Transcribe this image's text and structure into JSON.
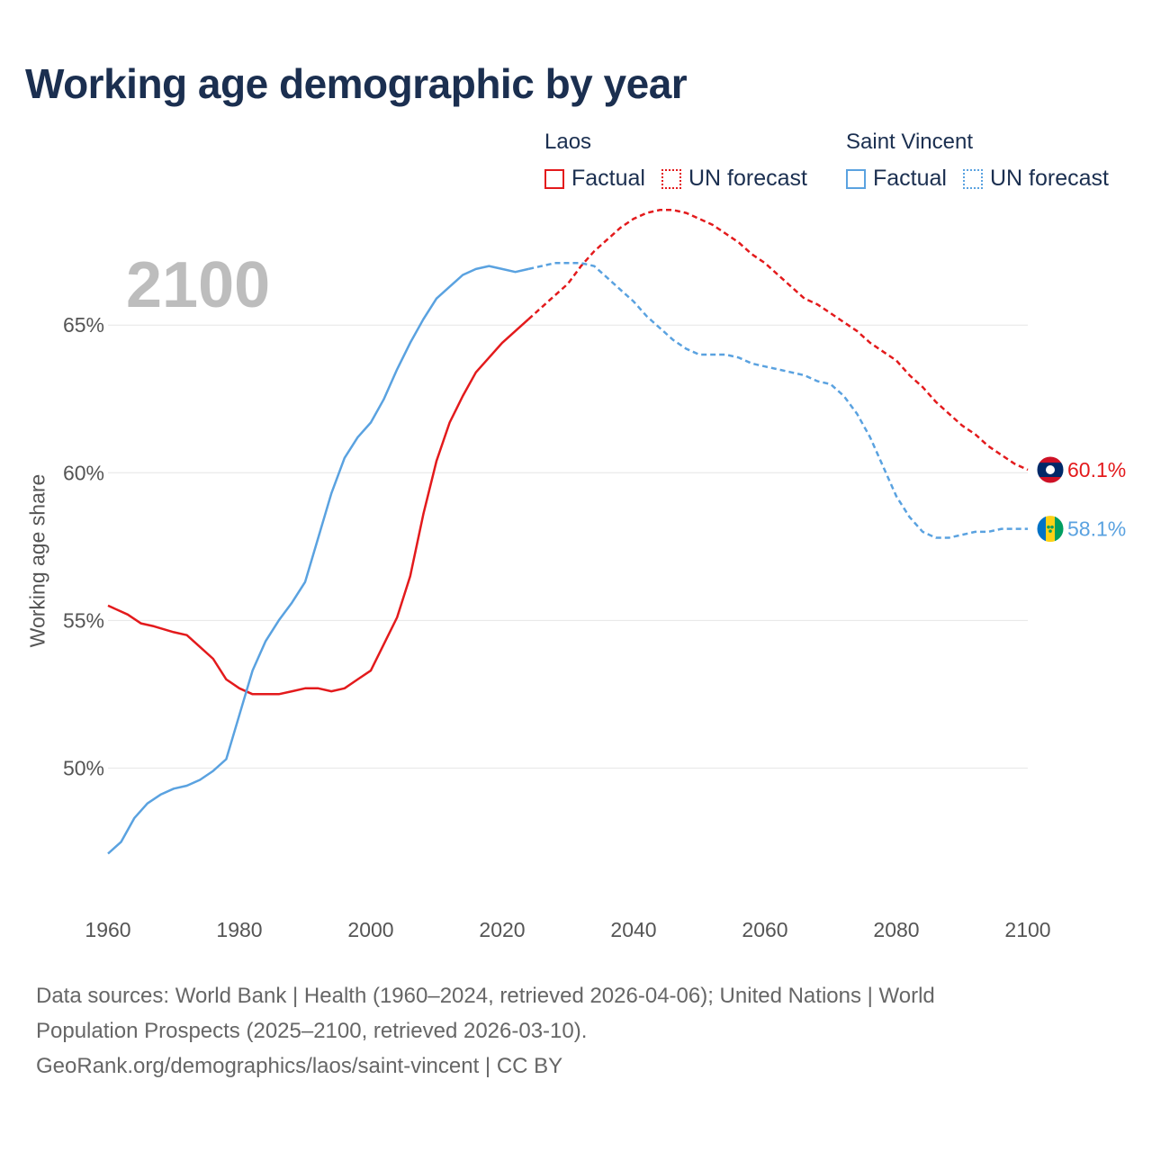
{
  "title": "Working age demographic by year",
  "big_year": "2100",
  "legend": {
    "groups": [
      {
        "country": "Laos",
        "color": "#e31a1c",
        "factual_label": "Factual",
        "forecast_label": "UN forecast"
      },
      {
        "country": "Saint Vincent",
        "color": "#5aa2e0",
        "factual_label": "Factual",
        "forecast_label": "UN forecast"
      }
    ]
  },
  "footer": {
    "line1": "Data sources: World Bank | Health (1960–2024, retrieved 2026-04-06); United Nations | World",
    "line2": "Population Prospects (2025–2100, retrieved 2026-03-10).",
    "line3": "GeoRank.org/demographics/laos/saint-vincent | CC BY"
  },
  "chart_data": {
    "type": "line",
    "title": "Working age demographic by year",
    "xlabel": "",
    "ylabel": "Working age share",
    "xlim": [
      1960,
      2100
    ],
    "ylim": [
      45.5,
      69
    ],
    "x_ticks": [
      1960,
      1980,
      2000,
      2020,
      2040,
      2060,
      2080,
      2100
    ],
    "x_tick_labels": [
      "1960",
      "1980",
      "2000",
      "2020",
      "2040",
      "2060",
      "2080",
      "2100"
    ],
    "y_ticks": [
      50,
      55,
      60,
      65
    ],
    "y_tick_labels": [
      "50%",
      "55%",
      "60%",
      "65%"
    ],
    "grid": true,
    "forecast_start": 2024,
    "series": [
      {
        "name": "Laos",
        "color": "#e31a1c",
        "end_label": "60.1%",
        "flag": "laos-flag",
        "points": [
          [
            1960,
            55.5
          ],
          [
            1963,
            55.2
          ],
          [
            1965,
            54.9
          ],
          [
            1967,
            54.8
          ],
          [
            1970,
            54.6
          ],
          [
            1972,
            54.5
          ],
          [
            1974,
            54.1
          ],
          [
            1976,
            53.7
          ],
          [
            1978,
            53.0
          ],
          [
            1980,
            52.7
          ],
          [
            1982,
            52.5
          ],
          [
            1984,
            52.5
          ],
          [
            1986,
            52.5
          ],
          [
            1988,
            52.6
          ],
          [
            1990,
            52.7
          ],
          [
            1992,
            52.7
          ],
          [
            1994,
            52.6
          ],
          [
            1996,
            52.7
          ],
          [
            1998,
            53.0
          ],
          [
            2000,
            53.3
          ],
          [
            2002,
            54.2
          ],
          [
            2004,
            55.1
          ],
          [
            2006,
            56.5
          ],
          [
            2008,
            58.6
          ],
          [
            2010,
            60.4
          ],
          [
            2012,
            61.7
          ],
          [
            2014,
            62.6
          ],
          [
            2016,
            63.4
          ],
          [
            2018,
            63.9
          ],
          [
            2020,
            64.4
          ],
          [
            2022,
            64.8
          ],
          [
            2024,
            65.2
          ],
          [
            2026,
            65.6
          ],
          [
            2028,
            66.0
          ],
          [
            2030,
            66.4
          ],
          [
            2032,
            67.0
          ],
          [
            2034,
            67.5
          ],
          [
            2036,
            67.9
          ],
          [
            2038,
            68.3
          ],
          [
            2040,
            68.6
          ],
          [
            2042,
            68.8
          ],
          [
            2044,
            68.9
          ],
          [
            2046,
            68.9
          ],
          [
            2048,
            68.8
          ],
          [
            2050,
            68.6
          ],
          [
            2052,
            68.4
          ],
          [
            2054,
            68.1
          ],
          [
            2056,
            67.8
          ],
          [
            2058,
            67.4
          ],
          [
            2060,
            67.1
          ],
          [
            2062,
            66.7
          ],
          [
            2064,
            66.3
          ],
          [
            2066,
            65.9
          ],
          [
            2068,
            65.7
          ],
          [
            2070,
            65.4
          ],
          [
            2072,
            65.1
          ],
          [
            2074,
            64.8
          ],
          [
            2076,
            64.4
          ],
          [
            2078,
            64.1
          ],
          [
            2080,
            63.8
          ],
          [
            2082,
            63.3
          ],
          [
            2084,
            62.9
          ],
          [
            2086,
            62.4
          ],
          [
            2088,
            62.0
          ],
          [
            2090,
            61.6
          ],
          [
            2092,
            61.3
          ],
          [
            2094,
            60.9
          ],
          [
            2096,
            60.6
          ],
          [
            2098,
            60.3
          ],
          [
            2100,
            60.1
          ]
        ]
      },
      {
        "name": "Saint Vincent",
        "color": "#5aa2e0",
        "end_label": "58.1%",
        "flag": "saint-vincent-flag",
        "points": [
          [
            1960,
            47.1
          ],
          [
            1962,
            47.5
          ],
          [
            1964,
            48.3
          ],
          [
            1966,
            48.8
          ],
          [
            1968,
            49.1
          ],
          [
            1970,
            49.3
          ],
          [
            1972,
            49.4
          ],
          [
            1974,
            49.6
          ],
          [
            1976,
            49.9
          ],
          [
            1978,
            50.3
          ],
          [
            1980,
            51.8
          ],
          [
            1982,
            53.3
          ],
          [
            1984,
            54.3
          ],
          [
            1986,
            55.0
          ],
          [
            1988,
            55.6
          ],
          [
            1990,
            56.3
          ],
          [
            1992,
            57.8
          ],
          [
            1994,
            59.3
          ],
          [
            1996,
            60.5
          ],
          [
            1998,
            61.2
          ],
          [
            2000,
            61.7
          ],
          [
            2002,
            62.5
          ],
          [
            2004,
            63.5
          ],
          [
            2006,
            64.4
          ],
          [
            2008,
            65.2
          ],
          [
            2010,
            65.9
          ],
          [
            2012,
            66.3
          ],
          [
            2014,
            66.7
          ],
          [
            2016,
            66.9
          ],
          [
            2018,
            67.0
          ],
          [
            2020,
            66.9
          ],
          [
            2022,
            66.8
          ],
          [
            2024,
            66.9
          ],
          [
            2026,
            67.0
          ],
          [
            2028,
            67.1
          ],
          [
            2030,
            67.1
          ],
          [
            2032,
            67.1
          ],
          [
            2034,
            67.0
          ],
          [
            2036,
            66.6
          ],
          [
            2038,
            66.2
          ],
          [
            2040,
            65.8
          ],
          [
            2042,
            65.3
          ],
          [
            2044,
            64.9
          ],
          [
            2046,
            64.5
          ],
          [
            2048,
            64.2
          ],
          [
            2050,
            64.0
          ],
          [
            2052,
            64.0
          ],
          [
            2054,
            64.0
          ],
          [
            2056,
            63.9
          ],
          [
            2058,
            63.7
          ],
          [
            2060,
            63.6
          ],
          [
            2062,
            63.5
          ],
          [
            2064,
            63.4
          ],
          [
            2066,
            63.3
          ],
          [
            2068,
            63.1
          ],
          [
            2070,
            63.0
          ],
          [
            2072,
            62.6
          ],
          [
            2074,
            62.0
          ],
          [
            2076,
            61.2
          ],
          [
            2078,
            60.2
          ],
          [
            2080,
            59.2
          ],
          [
            2082,
            58.5
          ],
          [
            2084,
            58.0
          ],
          [
            2086,
            57.8
          ],
          [
            2088,
            57.8
          ],
          [
            2090,
            57.9
          ],
          [
            2092,
            58.0
          ],
          [
            2094,
            58.0
          ],
          [
            2096,
            58.1
          ],
          [
            2098,
            58.1
          ],
          [
            2100,
            58.1
          ]
        ]
      }
    ]
  }
}
